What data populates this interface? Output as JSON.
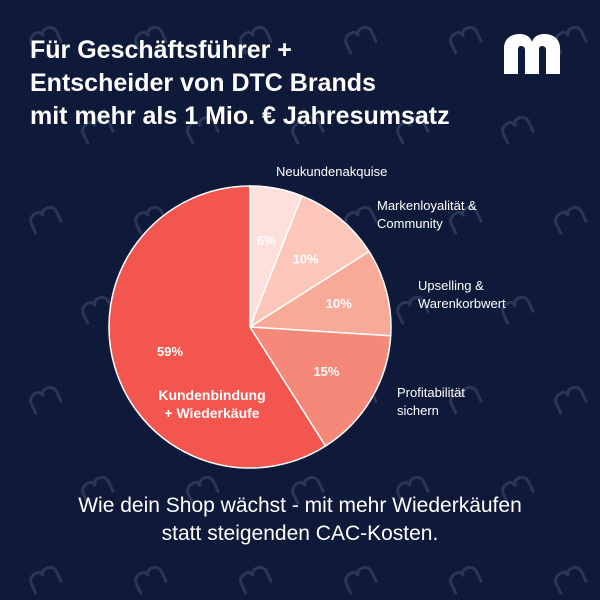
{
  "header": {
    "title_lines": [
      "Für Geschäftsführer +",
      "Entscheider von DTC Brands",
      "mit mehr als 1 Mio. € Jahresumsatz"
    ]
  },
  "logo": {
    "icon": "brand-m-icon",
    "color": "#ffffff"
  },
  "colors": {
    "background": "#0f1a3a",
    "watermark": "#2a3656",
    "slices": [
      "#fde0db",
      "#fcc7ba",
      "#f9a997",
      "#f6887a",
      "#f2564e"
    ]
  },
  "chart_data": {
    "type": "pie",
    "slices": [
      {
        "name": "Neukundenakquise",
        "value": 6,
        "label": "6%"
      },
      {
        "name": "Markenloyalität & Community",
        "value": 10,
        "label": "10%"
      },
      {
        "name": "Upselling & Warenkorbwert",
        "value": 10,
        "label": "10%"
      },
      {
        "name": "Profitabilität sichern",
        "value": 15,
        "label": "15%"
      },
      {
        "name": "Kundenbindung + Wiederkäufe",
        "value": 59,
        "label": "59%"
      }
    ],
    "outside_labels": [
      [
        "Neukundenakquise"
      ],
      [
        "Markenloyalität &",
        "Community"
      ],
      [
        "Upselling &",
        "Warenkorbwert"
      ],
      [
        "Profitabilität",
        "sichern"
      ]
    ],
    "inside_label": [
      "Kundenbindung",
      "+ Wiederkäufe"
    ]
  },
  "caption_lines": [
    "Wie dein Shop wächst - mit mehr Wiederkäufen",
    "statt steigenden CAC-Kosten."
  ]
}
